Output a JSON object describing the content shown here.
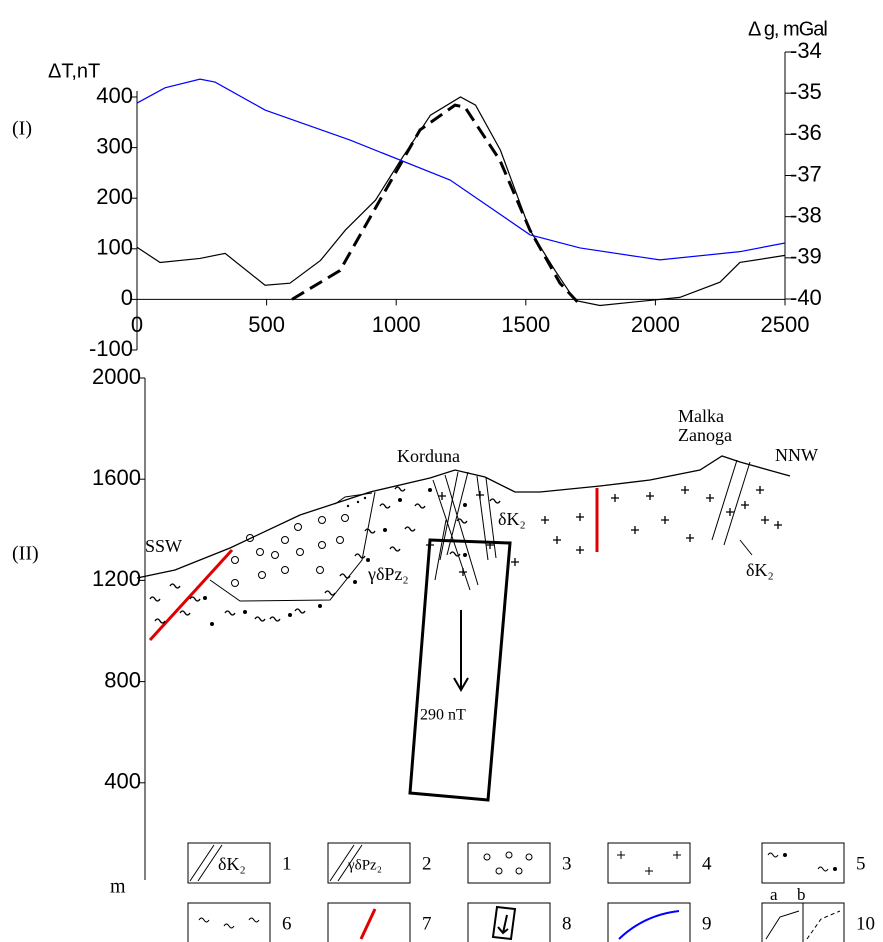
{
  "chart_data": [
    {
      "type": "line",
      "label": "(I)",
      "y_label": "ΔT,nT",
      "y2_label": "Δ g, mGal",
      "xlim": [
        0,
        2500
      ],
      "xticks": [
        0,
        500,
        1000,
        1500,
        2000,
        2500
      ],
      "ylim": [
        -100,
        400
      ],
      "yticks": [
        400,
        300,
        200,
        100,
        0,
        -100
      ],
      "y2lim": [
        -40,
        -34
      ],
      "y2ticks": [
        -34,
        -35,
        -36,
        -37,
        -38,
        -39,
        -40
      ],
      "series": [
        {
          "color": "#000000",
          "dash": false,
          "x": [
            0,
            89,
            243,
            340,
            494,
            590,
            708,
            804,
            920,
            1017,
            1132,
            1248,
            1306,
            1402,
            1516,
            1613,
            1690,
            1786,
            2094,
            2249,
            2326,
            2500
          ],
          "values": [
            103,
            73,
            81,
            91,
            28,
            32,
            77,
            137,
            196,
            275,
            364,
            400,
            384,
            295,
            137,
            57,
            -2,
            -12,
            4,
            34,
            73,
            87
          ]
        },
        {
          "color": "#000000",
          "dash": true,
          "x": [
            598,
            783,
            937,
            1092,
            1227,
            1265,
            1400,
            1516,
            1632,
            1701
          ],
          "values": [
            0,
            57,
            196,
            335,
            384,
            380,
            275,
            137,
            32,
            -6
          ]
        },
        {
          "color": "#0000ff",
          "dash": false,
          "axis": "y2",
          "x": [
            0,
            108,
            243,
            301,
            494,
            822,
            1208,
            1516,
            1709,
            2017,
            2326,
            2500
          ],
          "values": [
            -35.24,
            -34.87,
            -34.66,
            -34.73,
            -35.41,
            -36.14,
            -37.11,
            -38.44,
            -38.76,
            -39.05,
            -38.85,
            -38.64
          ]
        }
      ]
    },
    {
      "type": "section",
      "label": "(II)",
      "y_label": "m",
      "ylim": [
        0,
        2000
      ],
      "yticks": [
        2000,
        1600,
        1200,
        800,
        400
      ],
      "annotations": [
        "SSW",
        "NNW",
        "Korduna",
        "Malka",
        "Zanoga",
        "δK₂",
        "γδPz₂",
        "δK₂",
        "290 nT"
      ],
      "legend": [
        {
          "number": "1",
          "text": "δK₂"
        },
        {
          "number": "2",
          "text": "γδPz₂"
        },
        {
          "number": "3"
        },
        {
          "number": "4"
        },
        {
          "number": "5"
        },
        {
          "number": "6"
        },
        {
          "number": "7"
        },
        {
          "number": "8"
        },
        {
          "number": "9"
        },
        {
          "number": "10",
          "sublabels": [
            "a",
            "b"
          ]
        }
      ]
    }
  ]
}
